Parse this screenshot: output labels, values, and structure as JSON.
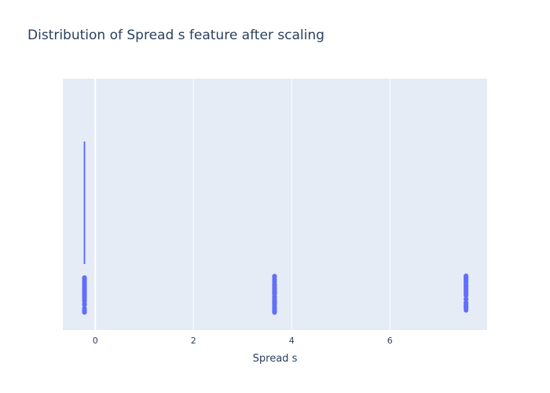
{
  "chart_data": {
    "type": "box",
    "title": "Distribution of Spread s feature after scaling",
    "xlabel": "Spread s",
    "ylabel": "",
    "xlim": [
      -0.66,
      7.98
    ],
    "x_ticks": [
      0,
      2,
      4,
      6
    ],
    "grid": true,
    "orientation": "horizontal",
    "box": {
      "min": -0.22,
      "q1": -0.22,
      "median": -0.22,
      "q3": -0.22,
      "upper_fence": -0.22
    },
    "points": [
      {
        "x": -0.22,
        "count": 60
      },
      {
        "x": 3.65,
        "count": 50
      },
      {
        "x": 7.55,
        "count": 40
      }
    ],
    "colors": {
      "marker": "#636efa",
      "plot_bg": "#e5ecf6",
      "grid": "#ffffff",
      "text": "#2a3f5f"
    }
  }
}
